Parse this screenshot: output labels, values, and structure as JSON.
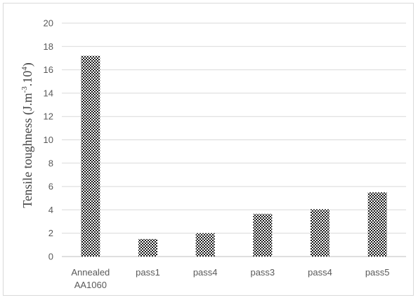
{
  "chart_data": {
    "type": "bar",
    "title": "",
    "xlabel": "",
    "ylabel": {
      "main": "Tensile toughness (J.m",
      "sup1": "-3",
      "mid": ".10",
      "sup2": "4",
      "end": ")"
    },
    "categories": [
      [
        "Annealed",
        "AA1060"
      ],
      [
        "pass1"
      ],
      [
        "pass4"
      ],
      [
        "pass3"
      ],
      [
        "pass4"
      ],
      [
        "pass5"
      ]
    ],
    "values": [
      17.2,
      1.5,
      2.0,
      3.65,
      4.05,
      5.5
    ],
    "ylim": [
      0,
      20
    ],
    "yticks": [
      0,
      2,
      4,
      6,
      8,
      10,
      12,
      14,
      16,
      18,
      20
    ],
    "grid": true,
    "legend": "none",
    "bar_pattern": "checkered",
    "colors": {
      "bar_dark": "#1a1a1a",
      "bar_light": "#ffffff",
      "grid": "#d9d9d9",
      "axis": "#bfbfbf"
    }
  }
}
